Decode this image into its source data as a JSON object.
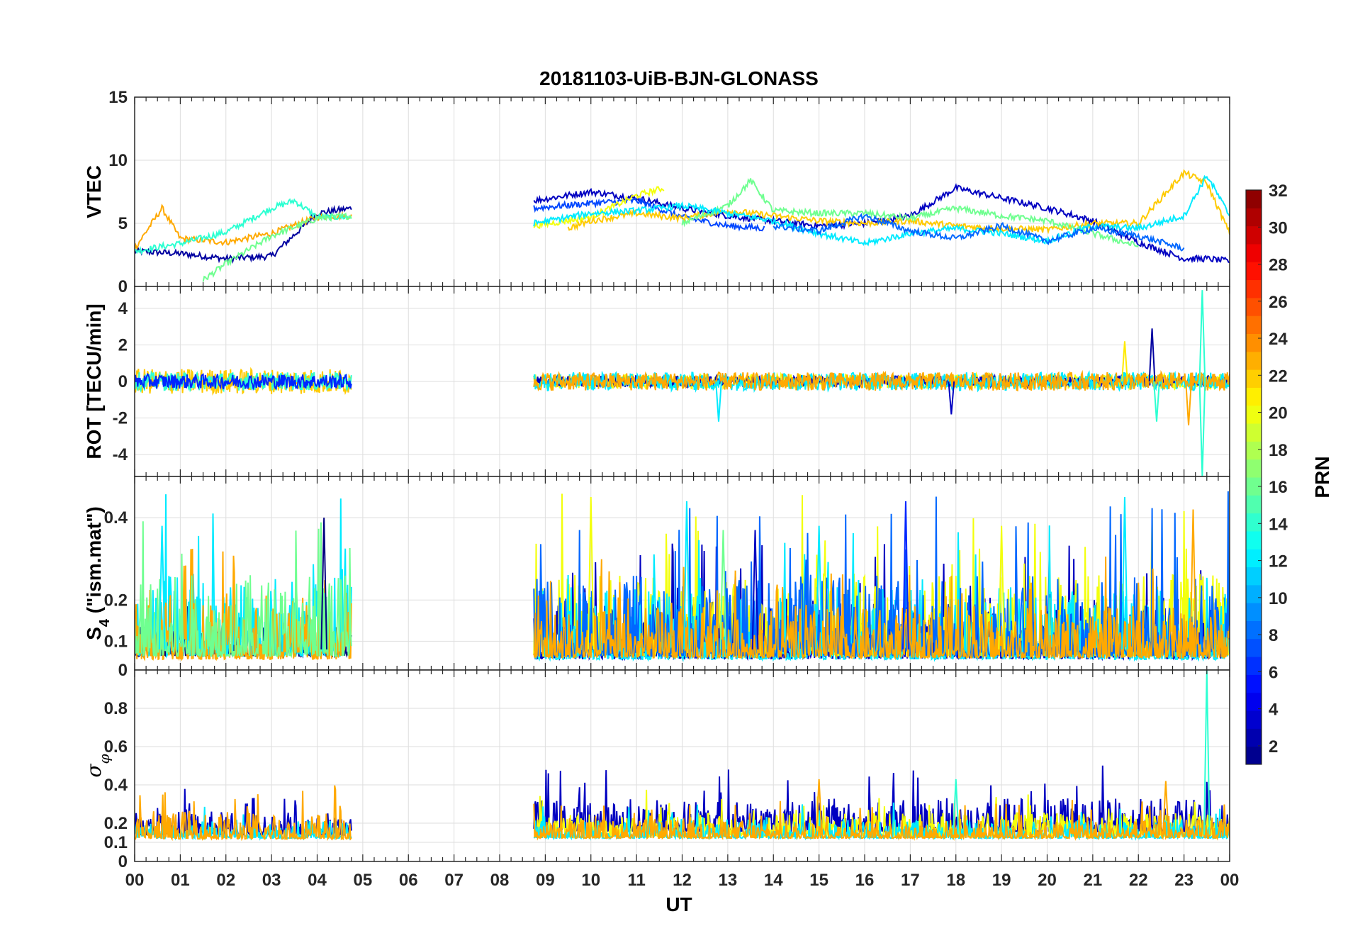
{
  "chart_data": {
    "title": "20181103-UiB-BJN-GLONASS",
    "type": "line",
    "xlabel": "UT",
    "x_ticks": [
      "00",
      "01",
      "02",
      "03",
      "04",
      "05",
      "06",
      "07",
      "08",
      "09",
      "10",
      "11",
      "12",
      "13",
      "14",
      "15",
      "16",
      "17",
      "18",
      "19",
      "20",
      "21",
      "22",
      "23",
      "00"
    ],
    "data_gaps": [
      [
        4.75,
        8.75
      ]
    ],
    "panels": [
      {
        "name": "vtec",
        "ylabel": "VTEC",
        "ylim": [
          0,
          15
        ],
        "yticks": [
          0,
          5,
          10,
          15
        ],
        "ytick_labels": [
          "0",
          "5",
          "10",
          "15"
        ],
        "series": [
          {
            "prn": 2,
            "x": [
              0,
              1,
              2,
              3,
              4,
              4.75
            ],
            "y": [
              2.8,
              2.6,
              2.2,
              2.4,
              5.8,
              6.2
            ]
          },
          {
            "prn": 23,
            "x": [
              0,
              0.6,
              1,
              2,
              3,
              4,
              4.75
            ],
            "y": [
              3.0,
              6.2,
              3.8,
              3.5,
              4.2,
              5.5,
              5.6
            ]
          },
          {
            "prn": 14,
            "x": [
              0,
              1,
              2,
              3,
              3.5,
              4,
              4.75
            ],
            "y": [
              2.8,
              3.4,
              4.3,
              6.2,
              6.8,
              5.5,
              5.5
            ]
          },
          {
            "prn": 16,
            "x": [
              1.5,
              2,
              3,
              4,
              4.75
            ],
            "y": [
              0.5,
              1.8,
              4.0,
              5.4,
              5.6
            ]
          },
          {
            "prn": 3,
            "x": [
              8.75,
              10,
              11,
              12,
              13,
              14,
              15,
              16,
              17,
              18,
              19,
              20,
              21,
              22,
              23,
              23.5,
              24
            ],
            "y": [
              6.8,
              7.5,
              7.0,
              6.2,
              5.6,
              5.2,
              4.8,
              5.0,
              5.6,
              7.8,
              7.0,
              6.2,
              5.2,
              3.5,
              2.2,
              2.2,
              2.0
            ]
          },
          {
            "prn": 7,
            "x": [
              8.75,
              10,
              11,
              12,
              13,
              13.8
            ],
            "y": [
              6.2,
              6.6,
              6.8,
              5.5,
              4.8,
              4.6
            ]
          },
          {
            "prn": 20,
            "x": [
              8.75,
              10,
              11,
              11.6
            ],
            "y": [
              4.8,
              5.5,
              7.2,
              7.8
            ]
          },
          {
            "prn": 22,
            "x": [
              9.5,
              10,
              11,
              12,
              13,
              14,
              15,
              16,
              17,
              18,
              19,
              20,
              21,
              22,
              23,
              23.5,
              24
            ],
            "y": [
              4.6,
              5.2,
              5.8,
              5.4,
              6.0,
              5.6,
              5.2,
              5.0,
              5.2,
              4.8,
              4.6,
              4.5,
              5.0,
              5.0,
              9.0,
              8.2,
              4.2
            ]
          },
          {
            "prn": 16,
            "x": [
              12,
              13,
              13.5,
              14,
              15,
              16,
              17,
              18,
              19,
              20,
              21,
              22
            ],
            "y": [
              5.0,
              6.4,
              8.4,
              6.0,
              5.8,
              5.8,
              5.4,
              6.2,
              5.6,
              5.2,
              4.2,
              3.2
            ]
          },
          {
            "prn": 12,
            "x": [
              8.75,
              10,
              11,
              12,
              13,
              14,
              15,
              16,
              17,
              18,
              19,
              20,
              21,
              22,
              23,
              23.5,
              24
            ],
            "y": [
              5.0,
              5.8,
              6.0,
              6.4,
              5.8,
              5.2,
              4.2,
              3.4,
              4.2,
              4.6,
              4.2,
              3.6,
              4.8,
              4.6,
              5.6,
              8.8,
              5.6
            ]
          },
          {
            "prn": 8,
            "x": [
              14,
              15,
              16,
              17,
              18,
              19,
              20,
              21,
              22,
              23
            ],
            "y": [
              4.8,
              4.4,
              5.6,
              4.4,
              3.8,
              4.8,
              3.6,
              4.6,
              4.0,
              3.0
            ]
          }
        ]
      },
      {
        "name": "rot",
        "ylabel": "ROT [TECU/min]",
        "ylim": [
          -5.2,
          5.2
        ],
        "yticks": [
          -4,
          -2,
          0,
          2,
          4
        ],
        "ytick_labels": [
          "-4",
          "-2",
          "0",
          "2",
          "4"
        ],
        "series": [
          {
            "prn": 22,
            "x": [
              0,
              4.75
            ],
            "y": [
              0,
              0
            ],
            "noise": 0.7
          },
          {
            "prn": 14,
            "x": [
              0,
              4.75
            ],
            "y": [
              0,
              0
            ],
            "noise": 0.5
          },
          {
            "prn": 6,
            "x": [
              0,
              4.75
            ],
            "y": [
              0,
              0
            ],
            "noise": 0.4
          },
          {
            "prn": 20,
            "x": [
              8.75,
              24
            ],
            "y": [
              0,
              0
            ],
            "noise": 0.4
          },
          {
            "prn": 3,
            "x": [
              8.75,
              24
            ],
            "y": [
              0,
              0
            ],
            "noise": 0.3
          },
          {
            "prn": 12,
            "x": [
              8.75,
              24
            ],
            "y": [
              0,
              0
            ],
            "noise": 0.5
          },
          {
            "prn": 23,
            "x": [
              8.75,
              24
            ],
            "y": [
              0,
              0
            ],
            "noise": 0.5
          }
        ],
        "spikes": [
          {
            "x": 12.8,
            "y": -2.2,
            "prn": 12
          },
          {
            "x": 17.9,
            "y": -1.8,
            "prn": 3
          },
          {
            "x": 21.7,
            "y": 2.2,
            "prn": 21
          },
          {
            "x": 22.3,
            "y": 2.9,
            "prn": 2
          },
          {
            "x": 22.4,
            "y": -2.2,
            "prn": 14
          },
          {
            "x": 23.4,
            "y": 5.0,
            "prn": 14
          },
          {
            "x": 23.4,
            "y": -5.2,
            "prn": 14
          },
          {
            "x": 23.1,
            "y": -2.4,
            "prn": 23
          }
        ]
      },
      {
        "name": "s4",
        "ylabel": "S",
        "ylabel_sub": "4",
        "ylabel_rest": " (\"ism.mat\")",
        "ylim": [
          0.03,
          0.5
        ],
        "yticks": [
          0.1,
          0.2,
          0.4
        ],
        "ytick_labels": [
          "0.1",
          "0.2",
          "0.4"
        ],
        "extra_tick_label": "0",
        "series": [
          {
            "prn": 1,
            "x": [
              0,
              4.75
            ],
            "y": [
              0.07,
              0.07
            ],
            "noise": 0.03
          },
          {
            "prn": 12,
            "x": [
              0,
              4.75
            ],
            "y": [
              0.08,
              0.08
            ],
            "noise": 0.08
          },
          {
            "prn": 23,
            "x": [
              0,
              4.75
            ],
            "y": [
              0.07,
              0.07
            ],
            "noise": 0.07
          },
          {
            "prn": 16,
            "x": [
              0,
              4.75
            ],
            "y": [
              0.08,
              0.08
            ],
            "noise": 0.08
          },
          {
            "prn": 3,
            "x": [
              8.75,
              24
            ],
            "y": [
              0.07,
              0.07
            ],
            "noise": 0.06
          },
          {
            "prn": 20,
            "x": [
              8.75,
              24
            ],
            "y": [
              0.08,
              0.08
            ],
            "noise": 0.08
          },
          {
            "prn": 12,
            "x": [
              8.75,
              24
            ],
            "y": [
              0.07,
              0.07
            ],
            "noise": 0.07
          },
          {
            "prn": 8,
            "x": [
              8.75,
              24
            ],
            "y": [
              0.08,
              0.08
            ],
            "noise": 0.08
          },
          {
            "prn": 23,
            "x": [
              8.75,
              24
            ],
            "y": [
              0.07,
              0.07
            ],
            "noise": 0.05
          }
        ],
        "spikes": [
          {
            "x": 0.6,
            "y": 0.38,
            "prn": 12
          },
          {
            "x": 4.15,
            "y": 0.4,
            "prn": 1
          },
          {
            "x": 10.0,
            "y": 0.45,
            "prn": 20
          },
          {
            "x": 12.1,
            "y": 0.44,
            "prn": 12
          },
          {
            "x": 12.9,
            "y": 0.37,
            "prn": 16
          },
          {
            "x": 13.6,
            "y": 0.37,
            "prn": 3
          },
          {
            "x": 15.0,
            "y": 0.38,
            "prn": 12
          },
          {
            "x": 16.9,
            "y": 0.44,
            "prn": 6
          },
          {
            "x": 19.0,
            "y": 0.38,
            "prn": 20
          },
          {
            "x": 21.7,
            "y": 0.45,
            "prn": 12
          },
          {
            "x": 23.2,
            "y": 0.42,
            "prn": 23
          }
        ]
      },
      {
        "name": "sigma",
        "ylabel": "σ",
        "ylabel_sub": "φ",
        "ylim": [
          0,
          1.0
        ],
        "yticks": [
          0,
          0.1,
          0.2,
          0.4,
          0.6,
          0.8
        ],
        "ytick_labels": [
          "0",
          "0.1",
          "0.2",
          "0.4",
          "0.6",
          "0.8"
        ],
        "series": [
          {
            "prn": 3,
            "x": [
              0,
              4.75
            ],
            "y": [
              0.15,
              0.15
            ],
            "noise": 0.05
          },
          {
            "prn": 12,
            "x": [
              0,
              4.75
            ],
            "y": [
              0.13,
              0.13
            ],
            "noise": 0.04
          },
          {
            "prn": 23,
            "x": [
              0,
              4.75
            ],
            "y": [
              0.13,
              0.13
            ],
            "noise": 0.06
          },
          {
            "prn": 3,
            "x": [
              8.75,
              24
            ],
            "y": [
              0.17,
              0.17
            ],
            "noise": 0.07
          },
          {
            "prn": 20,
            "x": [
              8.75,
              24
            ],
            "y": [
              0.14,
              0.14
            ],
            "noise": 0.05
          },
          {
            "prn": 12,
            "x": [
              8.75,
              24
            ],
            "y": [
              0.13,
              0.13
            ],
            "noise": 0.04
          },
          {
            "prn": 23,
            "x": [
              8.75,
              24
            ],
            "y": [
              0.13,
              0.13
            ],
            "noise": 0.04
          }
        ],
        "spikes": [
          {
            "x": 15.0,
            "y": 0.43,
            "prn": 23
          },
          {
            "x": 18.0,
            "y": 0.43,
            "prn": 14
          },
          {
            "x": 22.6,
            "y": 0.42,
            "prn": 23
          },
          {
            "x": 23.5,
            "y": 1.0,
            "prn": 14
          }
        ]
      }
    ],
    "colorbar": {
      "label": "PRN",
      "range": [
        1,
        32
      ],
      "ticks": [
        2,
        4,
        6,
        8,
        10,
        12,
        14,
        16,
        18,
        20,
        22,
        24,
        26,
        28,
        30,
        32
      ],
      "tick_labels": [
        "2",
        "4",
        "6",
        "8",
        "10",
        "12",
        "14",
        "16",
        "18",
        "20",
        "22",
        "24",
        "26",
        "28",
        "30",
        "32"
      ],
      "colormap": "jet"
    }
  }
}
